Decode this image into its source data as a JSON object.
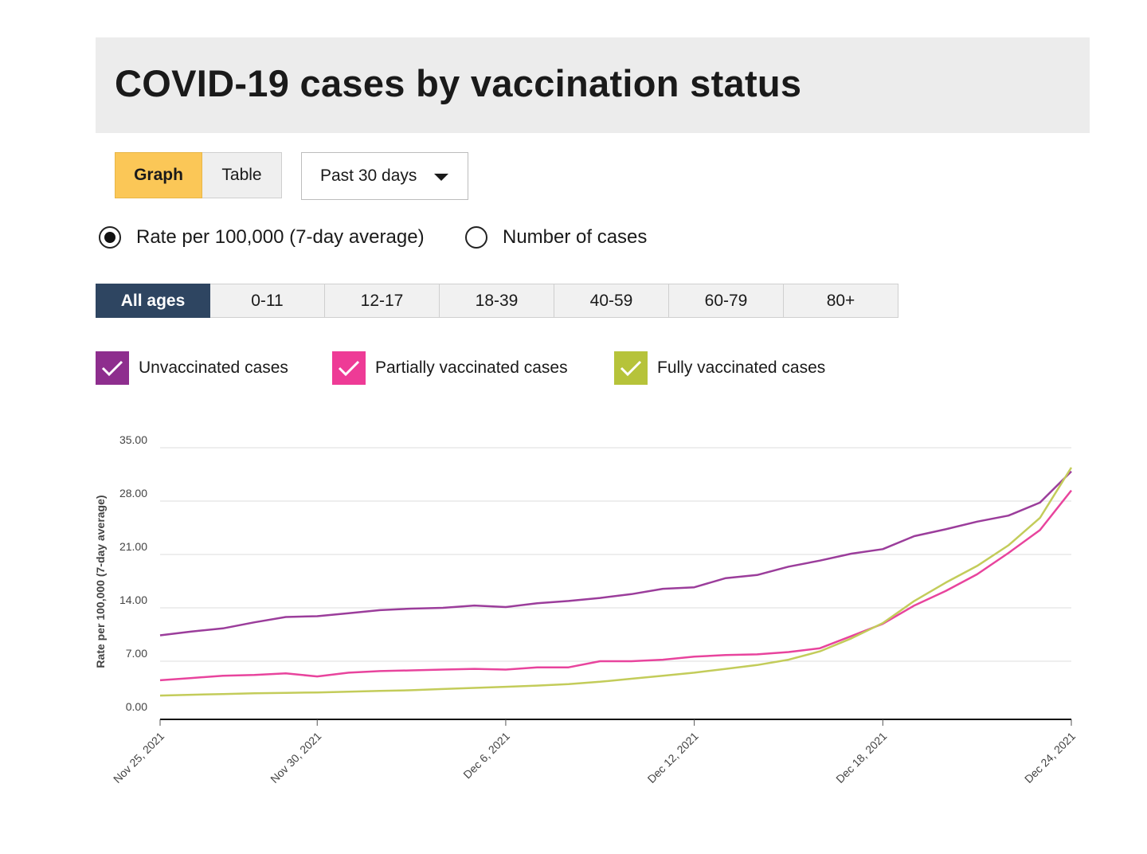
{
  "header": {
    "title": "COVID-19 cases by vaccination status"
  },
  "view_toggle": {
    "graph_label": "Graph",
    "table_label": "Table",
    "selected": "Graph"
  },
  "period_select": {
    "value": "Past 30 days"
  },
  "metric_options": [
    {
      "label": "Rate per 100,000 (7-day average)",
      "checked": true
    },
    {
      "label": "Number of cases",
      "checked": false
    }
  ],
  "age_tabs": [
    {
      "label": "All ages",
      "active": true
    },
    {
      "label": "0-11",
      "active": false
    },
    {
      "label": "12-17",
      "active": false
    },
    {
      "label": "18-39",
      "active": false
    },
    {
      "label": "40-59",
      "active": false
    },
    {
      "label": "60-79",
      "active": false
    },
    {
      "label": "80+",
      "active": false
    }
  ],
  "legend": [
    {
      "label": "Unvaccinated cases",
      "color": "#8e2e8e",
      "checked": true
    },
    {
      "label": "Partially vaccinated cases",
      "color": "#ee3b96",
      "checked": true
    },
    {
      "label": "Fully vaccinated cases",
      "color": "#b6c33a",
      "checked": true
    }
  ],
  "colors": {
    "accent_graph": "#fbc757",
    "tab_active": "#2e4561",
    "line_unvaccinated": "#9b3d9b",
    "line_partial": "#e8449d",
    "line_full": "#c3cc5a"
  },
  "chart_data": {
    "type": "line",
    "title": "",
    "xlabel": "",
    "ylabel": "Rate per 100,000 (7-day average)",
    "ylim": [
      0,
      35
    ],
    "yticks": [
      "0.00",
      "7.00",
      "14.00",
      "21.00",
      "28.00",
      "35.00"
    ],
    "x": [
      "2021-11-25",
      "2021-11-26",
      "2021-11-27",
      "2021-11-28",
      "2021-11-29",
      "2021-11-30",
      "2021-12-01",
      "2021-12-02",
      "2021-12-03",
      "2021-12-04",
      "2021-12-05",
      "2021-12-06",
      "2021-12-07",
      "2021-12-08",
      "2021-12-09",
      "2021-12-10",
      "2021-12-11",
      "2021-12-12",
      "2021-12-13",
      "2021-12-14",
      "2021-12-15",
      "2021-12-16",
      "2021-12-17",
      "2021-12-18",
      "2021-12-19",
      "2021-12-20",
      "2021-12-21",
      "2021-12-22",
      "2021-12-23",
      "2021-12-24"
    ],
    "x_tick_labels": [
      "Nov 25, 2021",
      "Nov 30, 2021",
      "Dec 6, 2021",
      "Dec 12, 2021",
      "Dec 18, 2021",
      "Dec 24, 2021"
    ],
    "x_tick_dates": [
      "2021-11-25",
      "2021-11-30",
      "2021-12-06",
      "2021-12-12",
      "2021-12-18",
      "2021-12-24"
    ],
    "grid": true,
    "series": [
      {
        "name": "Unvaccinated cases",
        "color": "#9b3d9b",
        "values": [
          10.4,
          10.9,
          11.3,
          12.1,
          12.8,
          12.9,
          13.3,
          13.7,
          13.9,
          14.0,
          14.3,
          14.1,
          14.6,
          14.9,
          15.3,
          15.8,
          16.5,
          16.7,
          17.9,
          18.3,
          19.4,
          20.2,
          21.1,
          21.7,
          23.4,
          24.3,
          25.3,
          26.1,
          27.8,
          31.9
        ]
      },
      {
        "name": "Partially vaccinated cases",
        "color": "#e8449d",
        "values": [
          4.5,
          4.8,
          5.1,
          5.2,
          5.4,
          5.0,
          5.5,
          5.7,
          5.8,
          5.9,
          6.0,
          5.9,
          6.2,
          6.2,
          7.0,
          7.0,
          7.2,
          7.6,
          7.8,
          7.9,
          8.2,
          8.7,
          10.3,
          11.9,
          14.3,
          16.2,
          18.4,
          21.2,
          24.2,
          29.4
        ]
      },
      {
        "name": "Fully vaccinated cases",
        "color": "#c3cc5a",
        "values": [
          2.5,
          2.6,
          2.7,
          2.8,
          2.85,
          2.9,
          3.0,
          3.1,
          3.2,
          3.35,
          3.5,
          3.65,
          3.8,
          4.0,
          4.3,
          4.7,
          5.1,
          5.5,
          6.0,
          6.5,
          7.2,
          8.3,
          10.0,
          12.0,
          14.9,
          17.3,
          19.5,
          22.2,
          25.8,
          32.4
        ]
      }
    ]
  }
}
